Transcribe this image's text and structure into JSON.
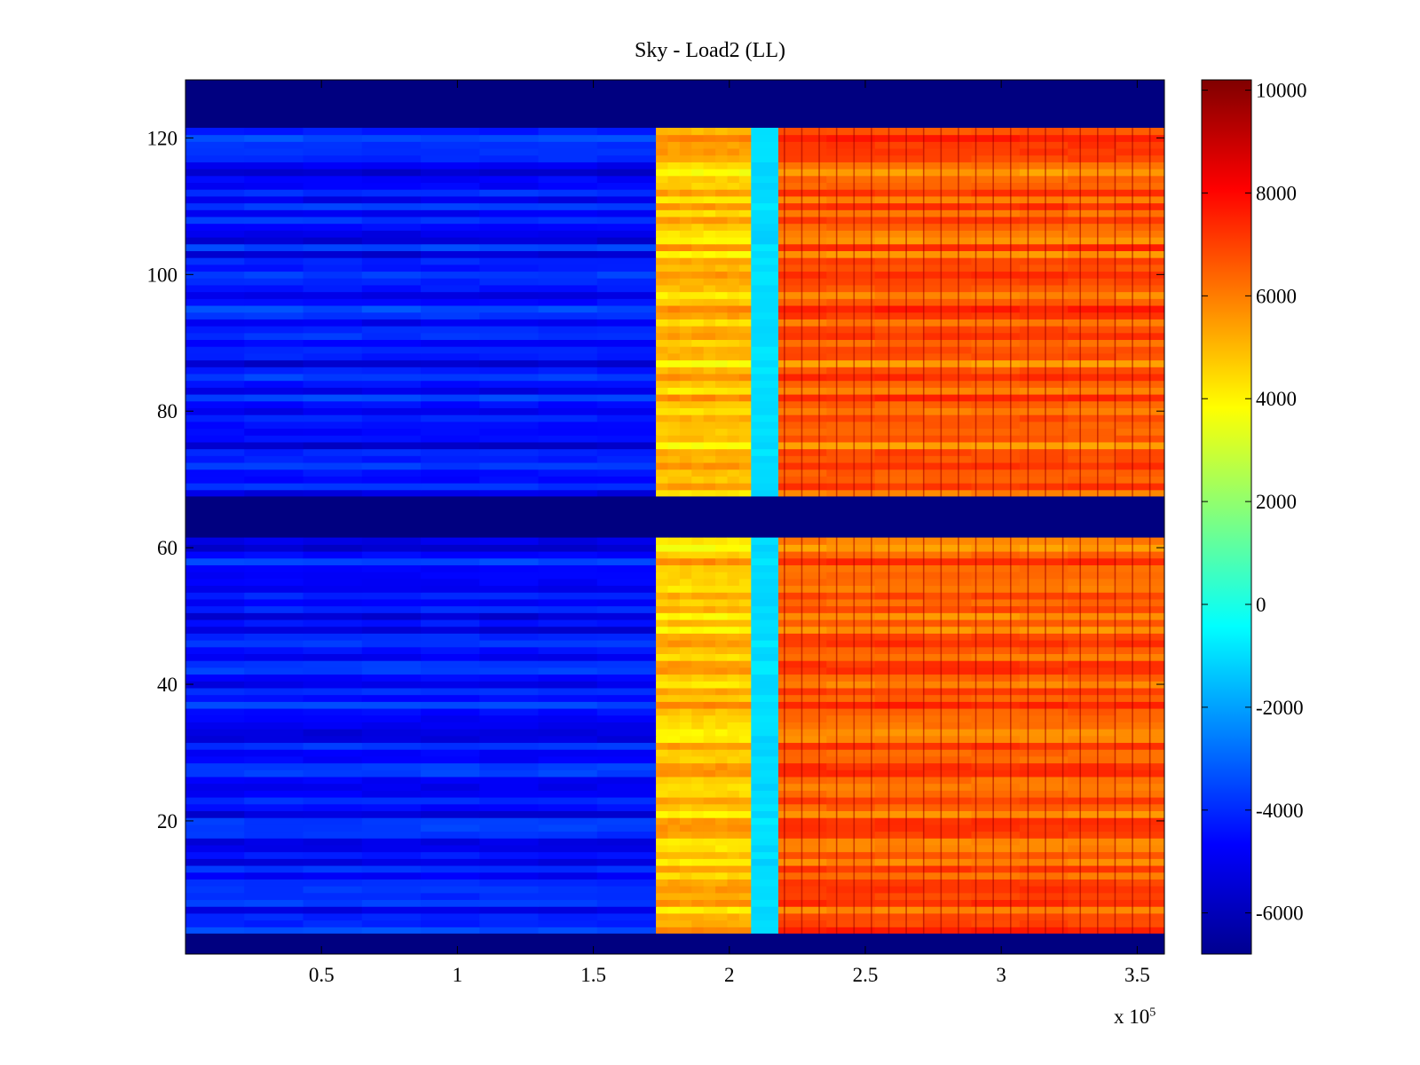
{
  "chart_data": {
    "type": "heatmap",
    "title": "Sky - Load2 (LL)",
    "xlabel": "",
    "ylabel": "",
    "x_multiplier": "x 10",
    "x_multiplier_exponent": "5",
    "xlim": [
      0,
      3.6
    ],
    "ylim": [
      0.5,
      128.5
    ],
    "x_ticks": [
      0.5,
      1,
      1.5,
      2,
      2.5,
      3,
      3.5
    ],
    "x_tick_labels": [
      "0.5",
      "1",
      "1.5",
      "2",
      "2.5",
      "3",
      "3.5"
    ],
    "y_ticks": [
      20,
      40,
      60,
      80,
      100,
      120
    ],
    "y_tick_labels": [
      "20",
      "40",
      "60",
      "80",
      "100",
      "120"
    ],
    "colorbar": {
      "colormap": "jet",
      "range": [
        -6800,
        10200
      ],
      "ticks": [
        10000,
        8000,
        6000,
        4000,
        2000,
        0,
        -2000,
        -4000,
        -6000
      ],
      "tick_labels": [
        "10000",
        "8000",
        "6000",
        "4000",
        "2000",
        "0",
        "-2000",
        "-4000",
        "-6000"
      ]
    },
    "empty_rows": [
      [
        1,
        3
      ],
      [
        62,
        67
      ],
      [
        122,
        128
      ]
    ],
    "x_segments": [
      {
        "x": [
          0,
          1.73
        ],
        "value": -4500
      },
      {
        "x": [
          1.73,
          2.08
        ],
        "value": 4800
      },
      {
        "x": [
          2.08,
          2.18
        ],
        "value": -1000
      },
      {
        "x": [
          2.18,
          3.6
        ],
        "value": 6500
      }
    ],
    "grid": false,
    "legend": "none"
  }
}
